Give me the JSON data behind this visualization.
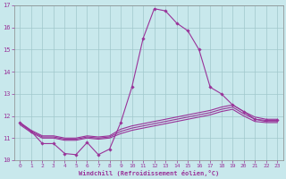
{
  "xlabel": "Windchill (Refroidissement éolien,°C)",
  "xlim": [
    -0.5,
    23.5
  ],
  "ylim": [
    10,
    17
  ],
  "yticks": [
    10,
    11,
    12,
    13,
    14,
    15,
    16,
    17
  ],
  "xticks": [
    0,
    1,
    2,
    3,
    4,
    5,
    6,
    7,
    8,
    9,
    10,
    11,
    12,
    13,
    14,
    15,
    16,
    17,
    18,
    19,
    20,
    21,
    22,
    23
  ],
  "background_color": "#c8e8ec",
  "grid_color": "#a0c8cc",
  "line_color": "#993399",
  "lines": [
    {
      "x": [
        0,
        1,
        2,
        3,
        4,
        5,
        6,
        7,
        8,
        9,
        10,
        11,
        12,
        13,
        14,
        15,
        16,
        17,
        18,
        19,
        20,
        21,
        22,
        23
      ],
      "y": [
        11.7,
        11.3,
        10.75,
        10.75,
        10.3,
        10.25,
        10.8,
        10.25,
        10.5,
        11.7,
        13.3,
        15.5,
        16.85,
        16.75,
        16.2,
        15.85,
        15.0,
        13.3,
        13.0,
        12.5,
        12.2,
        11.85,
        11.8,
        11.8
      ],
      "markers": true
    },
    {
      "x": [
        0,
        1,
        2,
        3,
        4,
        5,
        6,
        7,
        8,
        9,
        10,
        11,
        12,
        13,
        14,
        15,
        16,
        17,
        18,
        19,
        20,
        21,
        22,
        23
      ],
      "y": [
        11.7,
        11.35,
        11.1,
        11.1,
        11.0,
        11.0,
        11.1,
        11.05,
        11.1,
        11.4,
        11.55,
        11.65,
        11.75,
        11.85,
        11.95,
        12.05,
        12.15,
        12.25,
        12.4,
        12.5,
        12.2,
        11.95,
        11.85,
        11.85
      ],
      "markers": false
    },
    {
      "x": [
        0,
        1,
        2,
        3,
        4,
        5,
        6,
        7,
        8,
        9,
        10,
        11,
        12,
        13,
        14,
        15,
        16,
        17,
        18,
        19,
        20,
        21,
        22,
        23
      ],
      "y": [
        11.65,
        11.3,
        11.05,
        11.05,
        10.95,
        10.95,
        11.05,
        11.0,
        11.05,
        11.3,
        11.45,
        11.55,
        11.65,
        11.75,
        11.85,
        11.95,
        12.05,
        12.15,
        12.3,
        12.4,
        12.1,
        11.85,
        11.75,
        11.75
      ],
      "markers": false
    },
    {
      "x": [
        0,
        1,
        2,
        3,
        4,
        5,
        6,
        7,
        8,
        9,
        10,
        11,
        12,
        13,
        14,
        15,
        16,
        17,
        18,
        19,
        20,
        21,
        22,
        23
      ],
      "y": [
        11.6,
        11.25,
        11.0,
        11.0,
        10.9,
        10.9,
        11.0,
        10.95,
        11.0,
        11.2,
        11.35,
        11.45,
        11.55,
        11.65,
        11.75,
        11.85,
        11.95,
        12.05,
        12.2,
        12.3,
        12.0,
        11.75,
        11.7,
        11.7
      ],
      "markers": false
    }
  ]
}
